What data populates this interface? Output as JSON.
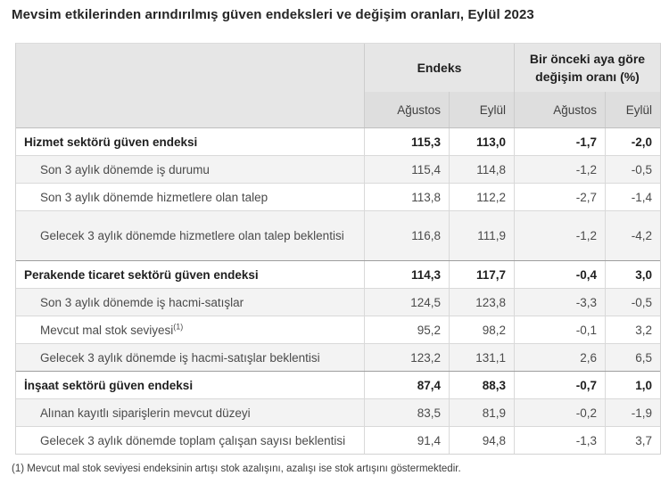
{
  "title": "Mevsim etkilerinden arındırılmış güven endeksleri ve değişim oranları, Eylül 2023",
  "table": {
    "col_groups": {
      "endeks": "Endeks",
      "change": "Bir önceki aya göre değişim oranı (%)"
    },
    "sub_headers": [
      "Ağustos",
      "Eylül",
      "Ağustos",
      "Eylül"
    ],
    "rows": [
      {
        "label": "Hizmet sektörü güven endeksi",
        "type": "section",
        "values": [
          "115,3",
          "113,0",
          "-1,7",
          "-2,0"
        ]
      },
      {
        "label": "Son 3 aylık dönemde iş durumu",
        "type": "sub",
        "values": [
          "115,4",
          "114,8",
          "-1,2",
          "-0,5"
        ]
      },
      {
        "label": "Son 3 aylık dönemde hizmetlere olan talep",
        "type": "sub",
        "values": [
          "113,8",
          "112,2",
          "-2,7",
          "-1,4"
        ]
      },
      {
        "label": "Gelecek 3 aylık dönemde hizmetlere olan talep beklentisi",
        "type": "sub",
        "values": [
          "116,8",
          "111,9",
          "-1,2",
          "-4,2"
        ]
      },
      {
        "label": "Perakende ticaret sektörü güven endeksi",
        "type": "section",
        "values": [
          "114,3",
          "117,7",
          "-0,4",
          "3,0"
        ]
      },
      {
        "label": "Son 3 aylık dönemde iş hacmi-satışlar",
        "type": "sub",
        "values": [
          "124,5",
          "123,8",
          "-3,3",
          "-0,5"
        ]
      },
      {
        "label": "Mevcut mal stok seviyesi",
        "label_sup": "(1)",
        "type": "sub",
        "values": [
          "95,2",
          "98,2",
          "-0,1",
          "3,2"
        ]
      },
      {
        "label": "Gelecek 3 aylık dönemde iş hacmi-satışlar beklentisi",
        "type": "sub",
        "values": [
          "123,2",
          "131,1",
          "2,6",
          "6,5"
        ]
      },
      {
        "label": "İnşaat sektörü güven endeksi",
        "type": "section",
        "values": [
          "87,4",
          "88,3",
          "-0,7",
          "1,0"
        ]
      },
      {
        "label": "Alınan kayıtlı siparişlerin mevcut düzeyi",
        "type": "sub",
        "values": [
          "83,5",
          "81,9",
          "-0,2",
          "-1,9"
        ]
      },
      {
        "label": "Gelecek 3 aylık dönemde toplam çalışan sayısı beklentisi",
        "type": "sub",
        "values": [
          "91,4",
          "94,8",
          "-1,3",
          "3,7"
        ]
      }
    ]
  },
  "footnote": "(1) Mevcut mal stok seviyesi endeksinin artışı stok azalışını, azalışı ise stok artışını göstermektedir.",
  "colors": {
    "header_bg": "#e6e6e6",
    "subheader_bg": "#dedede",
    "row_alt_bg": "#f3f3f3",
    "border": "#d9d9d9",
    "section_border": "#9e9e9e",
    "text_strong": "#1f1f1f",
    "text_normal": "#4b4b4b"
  },
  "chart_data": {
    "type": "table",
    "title": "Mevsim etkilerinden arındırılmış güven endeksleri ve değişim oranları, Eylül 2023",
    "column_groups": [
      "Endeks",
      "Bir önceki aya göre değişim oranı (%)"
    ],
    "columns": [
      "Endeks Ağustos",
      "Endeks Eylül",
      "Değişim oranı (%) Ağustos",
      "Değişim oranı (%) Eylül"
    ],
    "rows": [
      {
        "label": "Hizmet sektörü güven endeksi",
        "section": true,
        "values": [
          115.3,
          113.0,
          -1.7,
          -2.0
        ]
      },
      {
        "label": "Son 3 aylık dönemde iş durumu",
        "section": false,
        "values": [
          115.4,
          114.8,
          -1.2,
          -0.5
        ]
      },
      {
        "label": "Son 3 aylık dönemde hizmetlere olan talep",
        "section": false,
        "values": [
          113.8,
          112.2,
          -2.7,
          -1.4
        ]
      },
      {
        "label": "Gelecek 3 aylık dönemde hizmetlere olan talep beklentisi",
        "section": false,
        "values": [
          116.8,
          111.9,
          -1.2,
          -4.2
        ]
      },
      {
        "label": "Perakende ticaret sektörü güven endeksi",
        "section": true,
        "values": [
          114.3,
          117.7,
          -0.4,
          3.0
        ]
      },
      {
        "label": "Son 3 aylık dönemde iş hacmi-satışlar",
        "section": false,
        "values": [
          124.5,
          123.8,
          -3.3,
          -0.5
        ]
      },
      {
        "label": "Mevcut mal stok seviyesi (1)",
        "section": false,
        "values": [
          95.2,
          98.2,
          -0.1,
          3.2
        ]
      },
      {
        "label": "Gelecek 3 aylık dönemde iş hacmi-satışlar beklentisi",
        "section": false,
        "values": [
          123.2,
          131.1,
          2.6,
          6.5
        ]
      },
      {
        "label": "İnşaat sektörü güven endeksi",
        "section": true,
        "values": [
          87.4,
          88.3,
          -0.7,
          1.0
        ]
      },
      {
        "label": "Alınan kayıtlı siparişlerin mevcut düzeyi",
        "section": false,
        "values": [
          83.5,
          81.9,
          -0.2,
          -1.9
        ]
      },
      {
        "label": "Gelecek 3 aylık dönemde toplam çalışan sayısı beklentisi",
        "section": false,
        "values": [
          91.4,
          94.8,
          -1.3,
          3.7
        ]
      }
    ],
    "footnote": "(1) Mevcut mal stok seviyesi endeksinin artışı stok azalışını, azalışı ise stok artışını göstermektedir."
  }
}
